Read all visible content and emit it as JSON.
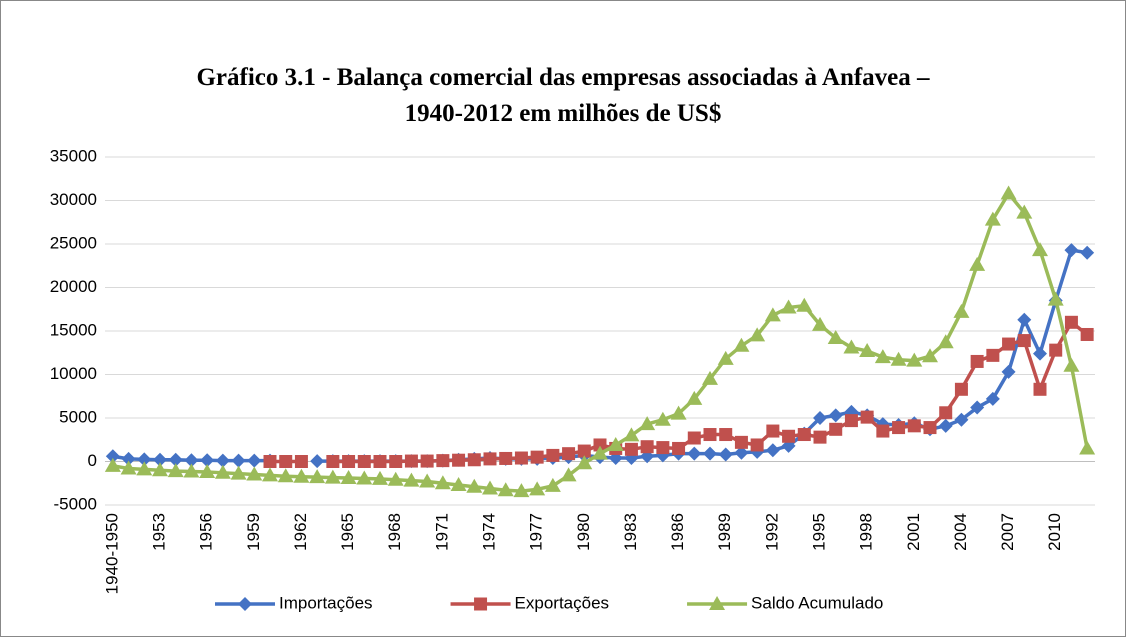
{
  "chart_data": {
    "type": "line",
    "title": "Gráfico 3.1 - Balança comercial das empresas associadas à Anfavea – 1940-2012 em milhões de US$",
    "categories": [
      "1940-1950",
      null,
      null,
      "1953",
      null,
      null,
      "1956",
      null,
      null,
      "1959",
      null,
      null,
      "1962",
      null,
      null,
      "1965",
      null,
      null,
      "1968",
      null,
      null,
      "1971",
      null,
      null,
      "1974",
      null,
      null,
      "1977",
      null,
      null,
      "1980",
      null,
      null,
      "1983",
      null,
      null,
      "1986",
      null,
      null,
      "1989",
      null,
      null,
      "1992",
      null,
      null,
      "1995",
      null,
      null,
      "1998",
      null,
      null,
      "2001",
      null,
      null,
      "2004",
      null,
      null,
      "2007",
      null,
      null,
      "2010",
      null,
      null
    ],
    "series": [
      {
        "name": "Importações",
        "color": "#4472c4",
        "marker": "diamond",
        "values": [
          600,
          300,
          250,
          200,
          200,
          150,
          150,
          100,
          100,
          100,
          100,
          null,
          null,
          50,
          50,
          50,
          50,
          50,
          50,
          50,
          50,
          100,
          200,
          300,
          400,
          300,
          300,
          300,
          400,
          500,
          700,
          500,
          400,
          400,
          600,
          700,
          900,
          900,
          900,
          800,
          1000,
          1100,
          1300,
          1800,
          3200,
          5000,
          5300,
          5700,
          5300,
          4300,
          4200,
          4400,
          3700,
          4100,
          4800,
          6200,
          7200,
          10300,
          16300,
          12400,
          18500,
          24300,
          24000
        ]
      },
      {
        "name": "Exportações",
        "color": "#c0504d",
        "marker": "square",
        "values": [
          null,
          null,
          null,
          null,
          null,
          null,
          null,
          null,
          null,
          null,
          0,
          0,
          0,
          null,
          0,
          0,
          0,
          0,
          0,
          50,
          50,
          100,
          150,
          200,
          300,
          350,
          400,
          500,
          700,
          900,
          1200,
          1900,
          1500,
          1400,
          1700,
          1600,
          1500,
          2700,
          3100,
          3100,
          2200,
          1900,
          3500,
          2900,
          3100,
          2800,
          3700,
          4700,
          5100,
          3500,
          3900,
          4100,
          3900,
          5600,
          8300,
          11500,
          12200,
          13500,
          13900,
          8300,
          12800,
          16000,
          14600
        ]
      },
      {
        "name": "Saldo Acumulado",
        "color": "#9bbb59",
        "marker": "triangle",
        "values": [
          -500,
          -800,
          -900,
          -1000,
          -1100,
          -1150,
          -1200,
          -1300,
          -1400,
          -1500,
          -1600,
          -1700,
          -1750,
          -1800,
          -1850,
          -1900,
          -1950,
          -2000,
          -2100,
          -2200,
          -2300,
          -2500,
          -2700,
          -2900,
          -3100,
          -3300,
          -3400,
          -3200,
          -2800,
          -1600,
          -200,
          900,
          1900,
          3000,
          4300,
          4800,
          5500,
          7200,
          9500,
          11800,
          13300,
          14500,
          16800,
          17700,
          17900,
          15700,
          14200,
          13100,
          12700,
          12000,
          11700,
          11600,
          12100,
          13700,
          17200,
          22600,
          27800,
          30800,
          28600,
          24300,
          18600,
          11000,
          1500
        ]
      }
    ],
    "ylim": [
      -5000,
      35000
    ],
    "yticks": [
      -5000,
      0,
      5000,
      10000,
      15000,
      20000,
      25000,
      30000,
      35000
    ],
    "grid": true,
    "legend": "bottom"
  }
}
